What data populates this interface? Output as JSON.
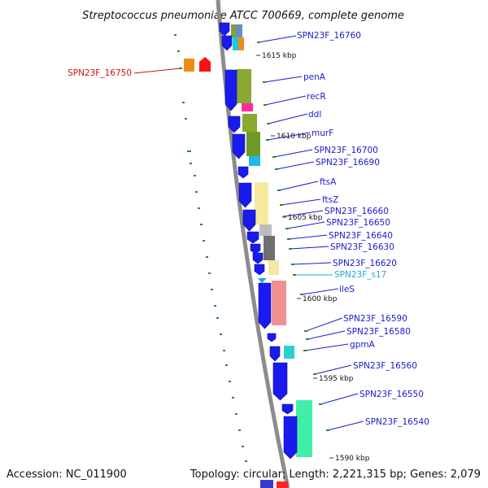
{
  "title": "Streptococcus pneumoniae ATCC 700669, complete genome",
  "accession": "Accession: NC_011900",
  "summary": "Topology: circular; Length: 2,221,315 bp; Genes: 2,079",
  "colors": {
    "backbone": "#8c8c8c",
    "gene_arrow": "#1a1aee",
    "label_default": "#1a1acc",
    "label_highlight": "#cc1111",
    "label_rna": "#22aadd",
    "dot": "#2a8a2a"
  },
  "ticks": [
    {
      "label": "1615 kbp"
    },
    {
      "label": "1610 kbp"
    },
    {
      "label": "1605 kbp"
    },
    {
      "label": "1600 kbp"
    },
    {
      "label": "1595 kbp"
    },
    {
      "label": "1590 kbp"
    }
  ],
  "genes": [
    {
      "label": "SPN23F_16760",
      "color": "label_default"
    },
    {
      "label": "SPN23F_16750",
      "color": "label_highlight"
    },
    {
      "label": "penA",
      "color": "label_default"
    },
    {
      "label": "recR",
      "color": "label_default"
    },
    {
      "label": "ddl",
      "color": "label_default"
    },
    {
      "label": "murF",
      "color": "label_default"
    },
    {
      "label": "SPN23F_16700",
      "color": "label_default"
    },
    {
      "label": "SPN23F_16690",
      "color": "label_default"
    },
    {
      "label": "ftsA",
      "color": "label_default"
    },
    {
      "label": "ftsZ",
      "color": "label_default"
    },
    {
      "label": "SPN23F_16660",
      "color": "label_default"
    },
    {
      "label": "SPN23F_16650",
      "color": "label_default"
    },
    {
      "label": "SPN23F_16640",
      "color": "label_default"
    },
    {
      "label": "SPN23F_16630",
      "color": "label_default"
    },
    {
      "label": "SPN23F_16620",
      "color": "label_default"
    },
    {
      "label": "SPN23F_s17",
      "color": "label_rna"
    },
    {
      "label": "ileS",
      "color": "label_default"
    },
    {
      "label": "SPN23F_16590",
      "color": "label_default"
    },
    {
      "label": "SPN23F_16580",
      "color": "label_default"
    },
    {
      "label": "gpmA",
      "color": "label_default"
    },
    {
      "label": "SPN23F_16560",
      "color": "label_default"
    },
    {
      "label": "SPN23F_16550",
      "color": "label_default"
    },
    {
      "label": "SPN23F_16540",
      "color": "label_default"
    }
  ]
}
